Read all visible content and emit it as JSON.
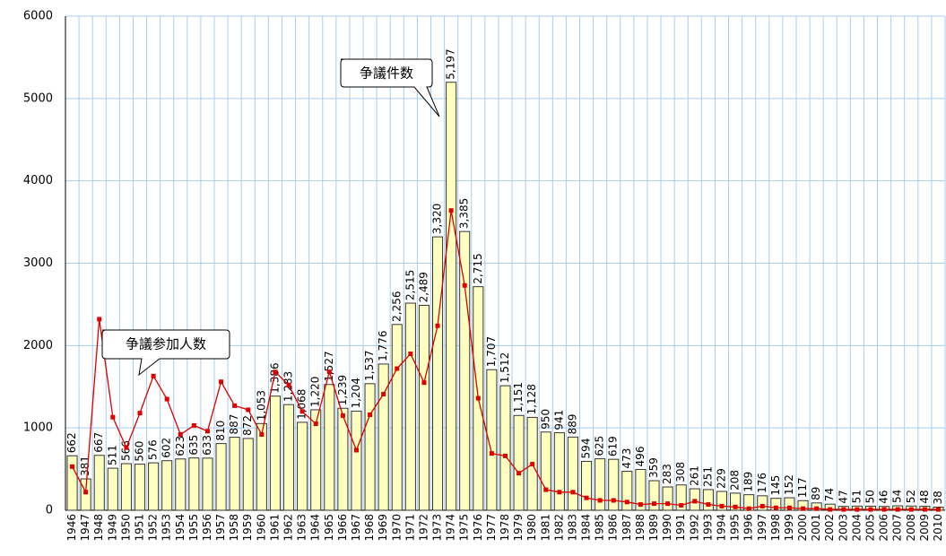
{
  "chart_data": {
    "type": "bar",
    "categories": [
      "1946",
      "1947",
      "1948",
      "1949",
      "1950",
      "1951",
      "1952",
      "1953",
      "1954",
      "1955",
      "1956",
      "1957",
      "1958",
      "1959",
      "1960",
      "1961",
      "1962",
      "1963",
      "1964",
      "1965",
      "1966",
      "1967",
      "1968",
      "1969",
      "1970",
      "1971",
      "1972",
      "1973",
      "1974",
      "1975",
      "1976",
      "1977",
      "1978",
      "1979",
      "1980",
      "1981",
      "1982",
      "1983",
      "1984",
      "1985",
      "1986",
      "1987",
      "1988",
      "1989",
      "1990",
      "1991",
      "1992",
      "1993",
      "1994",
      "1995",
      "1996",
      "1997",
      "1998",
      "1999",
      "2000",
      "2001",
      "2002",
      "2003",
      "2004",
      "2005",
      "2006",
      "2007",
      "2008",
      "2009",
      "2010"
    ],
    "series": [
      {
        "name": "争議件数",
        "type": "bar",
        "color": "#ffffc0",
        "values": [
          662,
          381,
          667,
          511,
          566,
          560,
          576,
          602,
          623,
          635,
          633,
          810,
          887,
          872,
          1053,
          1386,
          1283,
          1068,
          1220,
          1527,
          1239,
          1204,
          1537,
          1776,
          2256,
          2515,
          2489,
          3320,
          5197,
          3385,
          2715,
          1707,
          1512,
          1151,
          1128,
          950,
          941,
          889,
          594,
          625,
          619,
          473,
          496,
          359,
          283,
          308,
          261,
          251,
          229,
          208,
          189,
          176,
          145,
          152,
          117,
          89,
          74,
          47,
          51,
          50,
          46,
          54,
          52,
          48,
          38
        ],
        "value_labels": [
          "662",
          "381",
          "667",
          "511",
          "566",
          "560",
          "576",
          "602",
          "623",
          "635",
          "633",
          "810",
          "887",
          "872",
          "1,053",
          "1,386",
          "1,283",
          "1,068",
          "1,220",
          "1,527",
          "1,239",
          "1,204",
          "1,537",
          "1,776",
          "2,256",
          "2,515",
          "2,489",
          "3,320",
          "5,197",
          "3,385",
          "2,715",
          "1,707",
          "1,512",
          "1,151",
          "1,128",
          "950",
          "941",
          "889",
          "594",
          "625",
          "619",
          "473",
          "496",
          "359",
          "283",
          "308",
          "261",
          "251",
          "229",
          "208",
          "189",
          "176",
          "145",
          "152",
          "117",
          "89",
          "74",
          "47",
          "51",
          "50",
          "46",
          "54",
          "52",
          "48",
          "38"
        ]
      },
      {
        "name": "争議参加人数",
        "type": "line",
        "color": "#e00000",
        "values": [
          530,
          220,
          2320,
          1130,
          760,
          1180,
          1630,
          1350,
          920,
          1030,
          960,
          1560,
          1270,
          1220,
          920,
          1680,
          1520,
          1200,
          1050,
          1680,
          1150,
          730,
          1160,
          1410,
          1720,
          1900,
          1550,
          2240,
          3640,
          2730,
          1360,
          690,
          660,
          450,
          560,
          250,
          220,
          220,
          150,
          120,
          120,
          100,
          70,
          80,
          80,
          60,
          110,
          70,
          50,
          40,
          20,
          50,
          30,
          30,
          20,
          20,
          10,
          10,
          10,
          10,
          10,
          10,
          10,
          10,
          10
        ]
      }
    ],
    "annotations": [
      "争議件数",
      "争議参加人数"
    ],
    "ylim": [
      0,
      6000
    ],
    "yticks": [
      0,
      1000,
      2000,
      3000,
      4000,
      5000,
      6000
    ],
    "grid": true
  }
}
